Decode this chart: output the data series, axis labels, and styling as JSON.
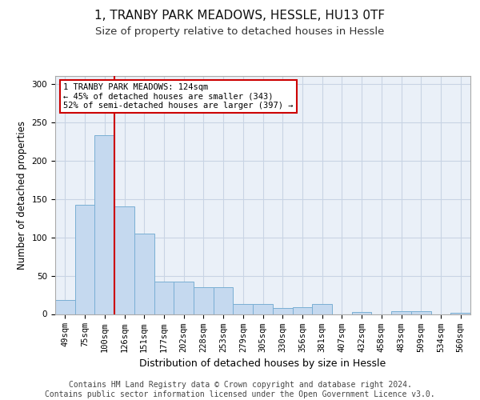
{
  "title1": "1, TRANBY PARK MEADOWS, HESSLE, HU13 0TF",
  "title2": "Size of property relative to detached houses in Hessle",
  "xlabel": "Distribution of detached houses by size in Hessle",
  "ylabel": "Number of detached properties",
  "categories": [
    "49sqm",
    "75sqm",
    "100sqm",
    "126sqm",
    "151sqm",
    "177sqm",
    "202sqm",
    "228sqm",
    "253sqm",
    "279sqm",
    "305sqm",
    "330sqm",
    "356sqm",
    "381sqm",
    "407sqm",
    "432sqm",
    "458sqm",
    "483sqm",
    "509sqm",
    "534sqm",
    "560sqm"
  ],
  "values": [
    18,
    142,
    233,
    140,
    105,
    42,
    42,
    35,
    35,
    13,
    13,
    8,
    9,
    13,
    0,
    3,
    0,
    4,
    4,
    0,
    2
  ],
  "bar_color": "#c5d9ef",
  "bar_edge_color": "#7aafd4",
  "bar_width": 1.0,
  "vline_x": 2.5,
  "vline_color": "#cc0000",
  "annotation_text": "1 TRANBY PARK MEADOWS: 124sqm\n← 45% of detached houses are smaller (343)\n52% of semi-detached houses are larger (397) →",
  "annotation_box_color": "#cc0000",
  "ylim": [
    0,
    310
  ],
  "yticks": [
    0,
    50,
    100,
    150,
    200,
    250,
    300
  ],
  "background_color": "#eaf0f8",
  "plot_bg_color": "#eaf0f8",
  "grid_color": "#c8d4e4",
  "footer_text": "Contains HM Land Registry data © Crown copyright and database right 2024.\nContains public sector information licensed under the Open Government Licence v3.0.",
  "title1_fontsize": 11,
  "title2_fontsize": 9.5,
  "xlabel_fontsize": 9,
  "ylabel_fontsize": 8.5,
  "tick_fontsize": 7.5,
  "annotation_fontsize": 7.5,
  "footer_fontsize": 7
}
